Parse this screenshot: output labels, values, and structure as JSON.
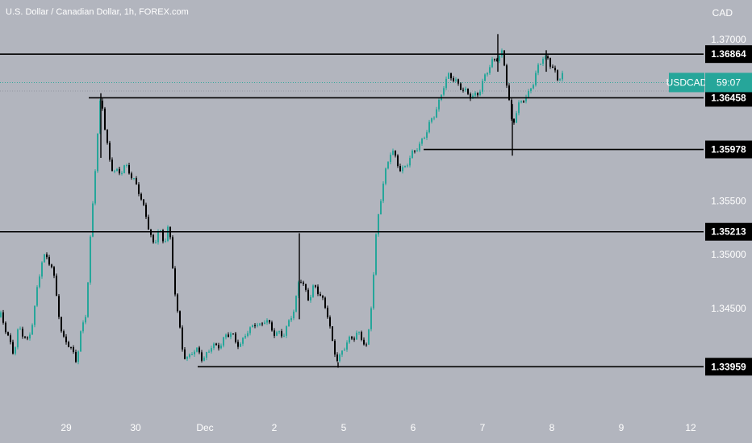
{
  "header": {
    "title": "U.S. Dollar / Canadian Dollar, 1h, FOREX.com",
    "currency": "CAD"
  },
  "symbol_badge": {
    "name": "USDCAD",
    "countdown": "59:07",
    "color": "#26a69a"
  },
  "colors": {
    "background": "#b2b5be",
    "up": "#26a69a",
    "down": "#000000",
    "level_line": "#000000",
    "label_bg": "#000000"
  },
  "chart_data": {
    "type": "candlestick",
    "title": "U.S. Dollar / Canadian Dollar, 1h, FOREX.com",
    "ylabel": "CAD",
    "y_ticks": [
      "1.37000",
      "1.35500",
      "1.35000",
      "1.34500"
    ],
    "x_ticks": [
      "29",
      "30",
      "Dec",
      "2",
      "5",
      "6",
      "7",
      "8",
      "9",
      "12"
    ],
    "horizontal_levels": [
      {
        "label": "1.36864",
        "value": 1.36864
      },
      {
        "label": "1.36458",
        "value": 1.36458
      },
      {
        "label": "1.35978",
        "value": 1.35978
      },
      {
        "label": "1.35213",
        "value": 1.35213
      },
      {
        "label": "1.33959",
        "value": 1.33959
      }
    ],
    "last_price": 1.366,
    "close_path": [
      [
        0,
        1.3442
      ],
      [
        5,
        1.343
      ],
      [
        10,
        1.342
      ],
      [
        16,
        1.341
      ],
      [
        22,
        1.3435
      ],
      [
        28,
        1.3425
      ],
      [
        34,
        1.3415
      ],
      [
        40,
        1.344
      ],
      [
        46,
        1.3475
      ],
      [
        52,
        1.3502
      ],
      [
        58,
        1.3495
      ],
      [
        64,
        1.3485
      ],
      [
        70,
        1.3455
      ],
      [
        76,
        1.3425
      ],
      [
        82,
        1.3422
      ],
      [
        88,
        1.341
      ],
      [
        94,
        1.3398
      ],
      [
        100,
        1.343
      ],
      [
        106,
        1.345
      ],
      [
        112,
        1.353
      ],
      [
        118,
        1.359
      ],
      [
        124,
        1.3648
      ],
      [
        130,
        1.361
      ],
      [
        136,
        1.3585
      ],
      [
        142,
        1.358
      ],
      [
        148,
        1.3575
      ],
      [
        154,
        1.358
      ],
      [
        160,
        1.3575
      ],
      [
        166,
        1.357
      ],
      [
        172,
        1.356
      ],
      [
        178,
        1.354
      ],
      [
        184,
        1.352
      ],
      [
        190,
        1.3505
      ],
      [
        196,
        1.353
      ],
      [
        202,
        1.351
      ],
      [
        208,
        1.353
      ],
      [
        214,
        1.3475
      ],
      [
        220,
        1.344
      ],
      [
        226,
        1.341
      ],
      [
        232,
        1.3405
      ],
      [
        238,
        1.341
      ],
      [
        244,
        1.3408
      ],
      [
        250,
        1.3402
      ],
      [
        256,
        1.341
      ],
      [
        262,
        1.342
      ],
      [
        268,
        1.3412
      ],
      [
        274,
        1.3415
      ],
      [
        280,
        1.3425
      ],
      [
        286,
        1.343
      ],
      [
        292,
        1.342
      ],
      [
        298,
        1.3415
      ],
      [
        304,
        1.3425
      ],
      [
        310,
        1.343
      ],
      [
        316,
        1.344
      ],
      [
        322,
        1.3435
      ],
      [
        328,
        1.344
      ],
      [
        334,
        1.343
      ],
      [
        340,
        1.3425
      ],
      [
        346,
        1.343
      ],
      [
        352,
        1.3428
      ],
      [
        358,
        1.344
      ],
      [
        364,
        1.3445
      ],
      [
        370,
        1.348
      ],
      [
        376,
        1.3472
      ],
      [
        382,
        1.346
      ],
      [
        388,
        1.347
      ],
      [
        394,
        1.3462
      ],
      [
        400,
        1.3455
      ],
      [
        406,
        1.3445
      ],
      [
        412,
        1.3415
      ],
      [
        418,
        1.34
      ],
      [
        424,
        1.3408
      ],
      [
        430,
        1.342
      ],
      [
        436,
        1.3425
      ],
      [
        442,
        1.343
      ],
      [
        448,
        1.342
      ],
      [
        454,
        1.341
      ],
      [
        460,
        1.346
      ],
      [
        466,
        1.353
      ],
      [
        472,
        1.356
      ],
      [
        478,
        1.358
      ],
      [
        484,
        1.3595
      ],
      [
        490,
        1.3588
      ],
      [
        496,
        1.358
      ],
      [
        502,
        1.3585
      ],
      [
        508,
        1.359
      ],
      [
        514,
        1.3595
      ],
      [
        520,
        1.3602
      ],
      [
        526,
        1.3615
      ],
      [
        532,
        1.3625
      ],
      [
        538,
        1.363
      ],
      [
        544,
        1.364
      ],
      [
        550,
        1.366
      ],
      [
        556,
        1.367
      ],
      [
        562,
        1.3665
      ],
      [
        568,
        1.3655
      ],
      [
        574,
        1.365
      ],
      [
        580,
        1.3648
      ],
      [
        586,
        1.365
      ],
      [
        592,
        1.3652
      ],
      [
        598,
        1.366
      ],
      [
        604,
        1.367
      ],
      [
        610,
        1.368
      ],
      [
        616,
        1.3686
      ],
      [
        622,
        1.369
      ],
      [
        626,
        1.3665
      ],
      [
        630,
        1.364
      ],
      [
        634,
        1.3615
      ],
      [
        638,
        1.363
      ],
      [
        642,
        1.364
      ],
      [
        648,
        1.3648
      ],
      [
        654,
        1.365
      ],
      [
        660,
        1.3658
      ],
      [
        666,
        1.3672
      ],
      [
        672,
        1.3685
      ],
      [
        678,
        1.3684
      ],
      [
        684,
        1.3675
      ],
      [
        690,
        1.366
      ],
      [
        696,
        1.3666
      ]
    ],
    "spikes": [
      {
        "x": 124,
        "high": 1.365,
        "low": 1.359
      },
      {
        "x": 370,
        "high": 1.352,
        "low": 1.344
      },
      {
        "x": 418,
        "high": 1.34,
        "low": 1.3395
      },
      {
        "x": 616,
        "high": 1.3705,
        "low": 1.367
      },
      {
        "x": 634,
        "high": 1.364,
        "low": 1.3592
      },
      {
        "x": 676,
        "high": 1.369,
        "low": 1.367
      }
    ]
  }
}
